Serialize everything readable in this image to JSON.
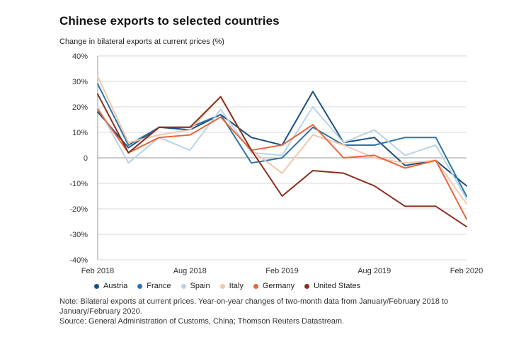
{
  "title": "Chinese exports to selected countries",
  "subtitle": "Change in bilateral exports at current prices (%)",
  "note": "Note: Bilateral exports at current prices. Year-on-year changes of two-month data from January/February 2018 to\nJanuary/February 2020.",
  "source": "Source: General Administration of Customs, China; Thomson Reuters Datastream.",
  "chart_data": {
    "type": "line",
    "x_points": [
      "Feb 2018",
      "Apr 2018",
      "Jun 2018",
      "Aug 2018",
      "Oct 2018",
      "Dec 2018",
      "Feb 2019",
      "Apr 2019",
      "Jun 2019",
      "Aug 2019",
      "Oct 2019",
      "Dec 2019",
      "Feb 2020"
    ],
    "x_tick_labels": [
      {
        "index": 0,
        "label": "Feb 2018"
      },
      {
        "index": 3,
        "label": "Aug 2018"
      },
      {
        "index": 6,
        "label": "Feb 2019"
      },
      {
        "index": 9,
        "label": "Aug 2019"
      },
      {
        "index": 12,
        "label": "Feb 2020"
      }
    ],
    "y_ticks": [
      40,
      30,
      20,
      10,
      0,
      -10,
      -20,
      -30,
      -40
    ],
    "y_tick_labels": [
      "40%",
      "30%",
      "20%",
      "10%",
      "0",
      "-10%",
      "-20%",
      "-30%",
      "-40%"
    ],
    "ylim": [
      -40,
      40
    ],
    "grid": "horizontal",
    "series": [
      {
        "name": "Austria",
        "color": "#1b4f7f",
        "values": [
          18,
          4,
          12,
          11,
          17,
          8,
          5,
          26,
          6,
          8,
          -3,
          -1,
          -11
        ]
      },
      {
        "name": "France",
        "color": "#2f75a8",
        "values": [
          29,
          5,
          12,
          12,
          17,
          -2,
          0,
          12,
          5,
          5,
          8,
          8,
          -15
        ]
      },
      {
        "name": "Spain",
        "color": "#b9d3e8",
        "values": [
          20,
          -2,
          8,
          3,
          19,
          2,
          1,
          20,
          6,
          11,
          1,
          5,
          -16
        ]
      },
      {
        "name": "Italy",
        "color": "#f4c6aa",
        "values": [
          32,
          6,
          9,
          11,
          24,
          3,
          -6,
          9,
          5,
          0,
          -2,
          -1,
          -18
        ]
      },
      {
        "name": "Germany",
        "color": "#e8663a",
        "values": [
          19,
          2,
          8,
          9,
          16,
          3,
          5,
          13,
          0,
          1,
          -4,
          -1,
          -24
        ]
      },
      {
        "name": "United States",
        "color": "#8b2f1c",
        "values": [
          25,
          2,
          12,
          12,
          24,
          3,
          -15,
          -5,
          -6,
          -11,
          -19,
          -19,
          -27
        ]
      }
    ]
  }
}
